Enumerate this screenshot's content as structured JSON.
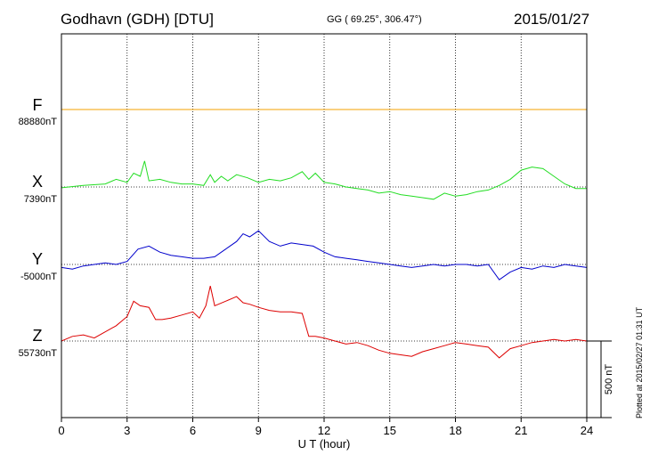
{
  "header": {
    "station": "Godhavn (GDH)  [DTU]",
    "coords": "GG ( 69.25°, 306.47°)",
    "date": "2015/01/27"
  },
  "plotted_note": "Plotted at 2015/02/27 01:31  UT",
  "chart_data": {
    "type": "line",
    "title": "Godhavn (GDH)  [DTU]",
    "xlabel": "U T (hour)",
    "ylabel": "",
    "xlim": [
      0,
      24
    ],
    "x_ticks": [
      0,
      3,
      6,
      9,
      12,
      15,
      18,
      21,
      24
    ],
    "grid": true,
    "scale_bar": {
      "value_nT": 500,
      "label": "500 nT"
    },
    "series": [
      {
        "name": "F",
        "baseline_label": "88880nT",
        "baseline": 88880,
        "color": "#f5a000",
        "x": [
          0,
          24
        ],
        "y": [
          88880,
          88880
        ]
      },
      {
        "name": "X",
        "baseline_label": "7390nT",
        "baseline": 7390,
        "color": "#22dd22",
        "x": [
          0,
          1,
          2,
          2.5,
          3,
          3.3,
          3.6,
          3.8,
          4,
          4.5,
          5,
          5.5,
          6,
          6.5,
          6.8,
          7,
          7.3,
          7.6,
          8,
          8.5,
          9,
          9.5,
          10,
          10.5,
          11,
          11.3,
          11.6,
          12,
          12.5,
          13,
          13.5,
          14,
          14.5,
          15,
          15.5,
          16,
          16.5,
          17,
          17.5,
          18,
          18.5,
          19,
          19.5,
          20,
          20.5,
          21,
          21.5,
          22,
          22.5,
          23,
          23.5,
          24
        ],
        "y": [
          7385,
          7400,
          7410,
          7440,
          7420,
          7480,
          7460,
          7560,
          7430,
          7440,
          7420,
          7410,
          7410,
          7400,
          7470,
          7420,
          7460,
          7430,
          7470,
          7450,
          7420,
          7440,
          7430,
          7450,
          7490,
          7440,
          7480,
          7420,
          7410,
          7390,
          7380,
          7370,
          7350,
          7360,
          7340,
          7330,
          7320,
          7310,
          7350,
          7330,
          7340,
          7360,
          7370,
          7400,
          7440,
          7500,
          7520,
          7510,
          7460,
          7410,
          7380,
          7380
        ]
      },
      {
        "name": "Y",
        "baseline_label": "-5000nT",
        "baseline": -5000,
        "color": "#0000cc",
        "x": [
          0,
          0.5,
          1,
          1.5,
          2,
          2.5,
          3,
          3.5,
          4,
          4.5,
          5,
          5.5,
          6,
          6.5,
          7,
          7.5,
          8,
          8.3,
          8.6,
          9,
          9.5,
          10,
          10.5,
          11,
          11.5,
          12,
          12.5,
          13,
          13.5,
          14,
          14.5,
          15,
          15.5,
          16,
          16.5,
          17,
          17.5,
          18,
          18.5,
          19,
          19.5,
          20,
          20.5,
          21,
          21.5,
          22,
          22.5,
          23,
          23.5,
          24
        ],
        "y": [
          -5020,
          -5030,
          -5010,
          -5000,
          -4990,
          -5000,
          -4980,
          -4900,
          -4880,
          -4920,
          -4940,
          -4950,
          -4960,
          -4960,
          -4950,
          -4900,
          -4850,
          -4800,
          -4820,
          -4780,
          -4850,
          -4880,
          -4860,
          -4870,
          -4880,
          -4920,
          -4950,
          -4960,
          -4970,
          -4980,
          -4990,
          -5000,
          -5010,
          -5020,
          -5010,
          -5000,
          -5010,
          -5000,
          -5000,
          -5010,
          -5000,
          -5100,
          -5050,
          -5020,
          -5030,
          -5010,
          -5020,
          -5000,
          -5010,
          -5020
        ]
      },
      {
        "name": "Z",
        "baseline_label": "55730nT",
        "baseline": 55730,
        "color": "#dd0000",
        "x": [
          0,
          0.5,
          1,
          1.5,
          2,
          2.5,
          3,
          3.3,
          3.6,
          4,
          4.3,
          4.6,
          5,
          5.5,
          6,
          6.3,
          6.6,
          6.8,
          7,
          7.5,
          8,
          8.3,
          8.6,
          9,
          9.5,
          10,
          10.5,
          11,
          11.3,
          11.6,
          12,
          12.5,
          13,
          13.5,
          14,
          14.5,
          15,
          15.5,
          16,
          16.5,
          17,
          17.5,
          18,
          18.5,
          19,
          19.5,
          20,
          20.5,
          21,
          21.5,
          22,
          22.5,
          23,
          23.5,
          24
        ],
        "y": [
          55730,
          55760,
          55770,
          55750,
          55790,
          55830,
          55890,
          55990,
          55960,
          55950,
          55870,
          55870,
          55880,
          55900,
          55920,
          55880,
          55960,
          56090,
          55960,
          55990,
          56020,
          55980,
          55970,
          55950,
          55930,
          55920,
          55920,
          55910,
          55760,
          55760,
          55750,
          55730,
          55710,
          55720,
          55700,
          55670,
          55650,
          55640,
          55630,
          55660,
          55680,
          55700,
          55720,
          55710,
          55700,
          55690,
          55620,
          55680,
          55700,
          55720,
          55730,
          55740,
          55730,
          55740,
          55730
        ]
      }
    ]
  }
}
